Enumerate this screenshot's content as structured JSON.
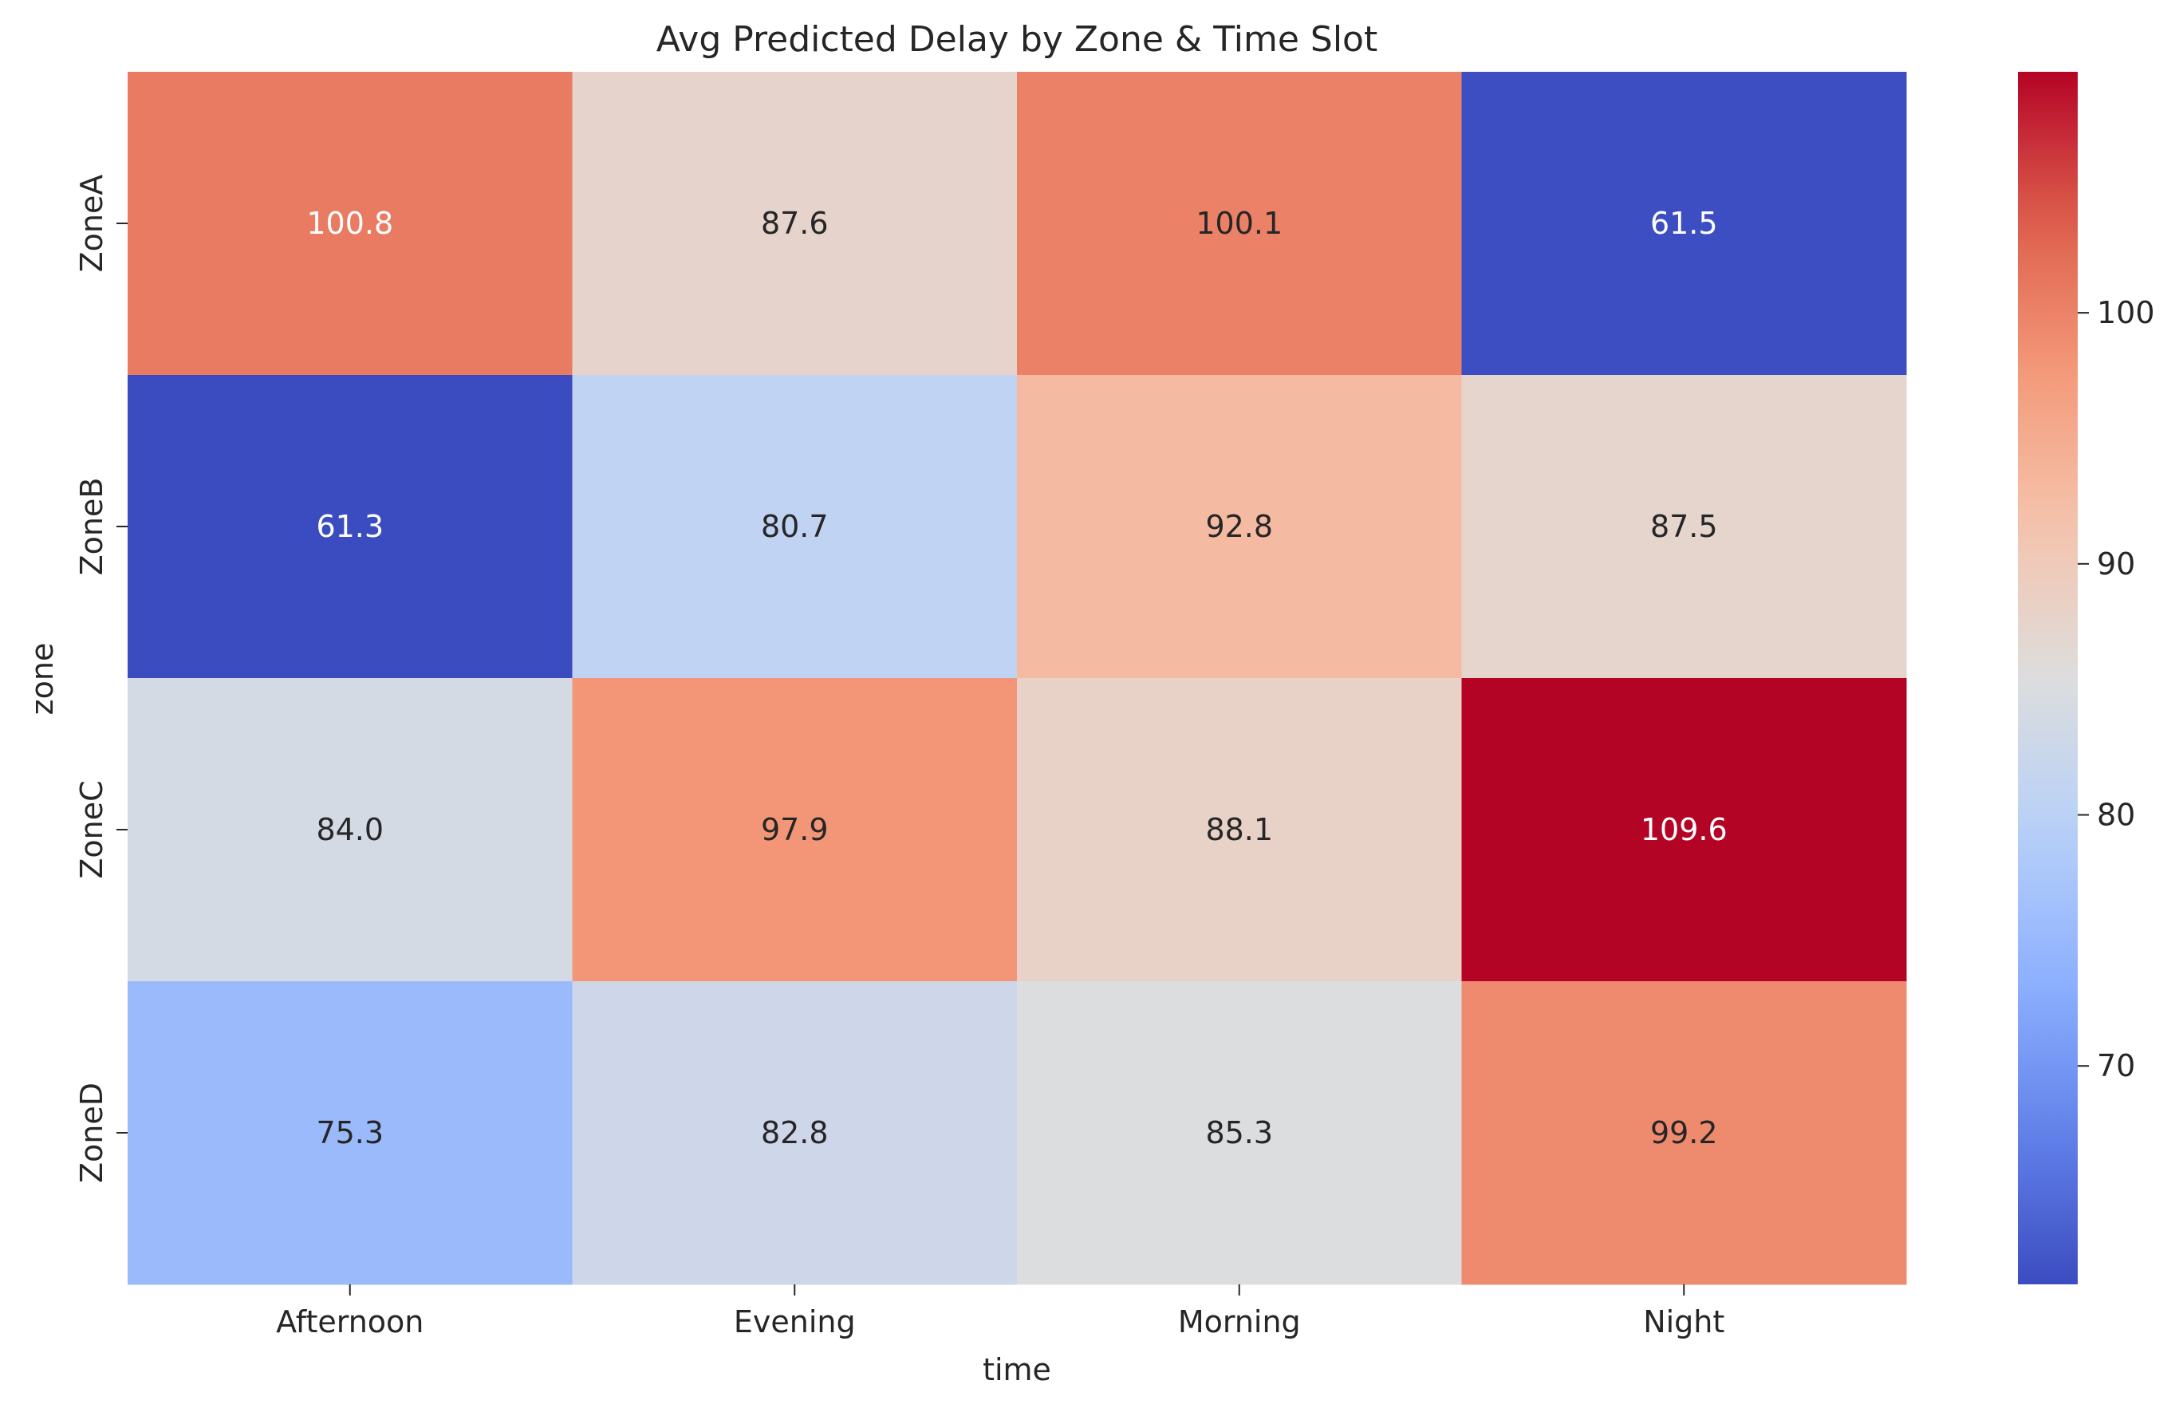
{
  "chart_data": {
    "type": "heatmap",
    "title": "Avg Predicted Delay by Zone & Time Slot",
    "xlabel": "time",
    "ylabel": "zone",
    "x_categories": [
      "Afternoon",
      "Evening",
      "Morning",
      "Night"
    ],
    "y_categories": [
      "ZoneA",
      "ZoneB",
      "ZoneC",
      "ZoneD"
    ],
    "values": [
      [
        100.8,
        87.6,
        100.1,
        61.5
      ],
      [
        61.3,
        80.7,
        92.8,
        87.5
      ],
      [
        84.0,
        97.9,
        88.1,
        109.6
      ],
      [
        75.3,
        82.8,
        85.3,
        99.2
      ]
    ],
    "colormap": "coolwarm",
    "colorbar": {
      "range": [
        61.3,
        109.6
      ],
      "ticks": [
        70,
        80,
        90,
        100
      ]
    },
    "annotations": "values shown in each cell, 1 decimal"
  }
}
